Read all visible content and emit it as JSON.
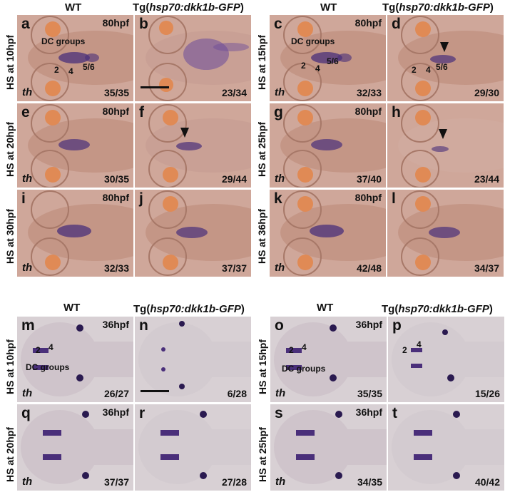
{
  "colors": {
    "top_panel_bg": "#cfa79a",
    "bottom_panel_bg": "#d8d0d4",
    "stain": "#4a2f7a",
    "eye": "#e08a55"
  },
  "top_block": {
    "headers": {
      "wt": "WT",
      "tg_prefix": "Tg(",
      "tg_gene": "hsp70:dkk1b-GFP",
      "tg_suffix": ")"
    },
    "rows": [
      {
        "label": "HS at 10hpf",
        "panels": [
          {
            "letter": "a",
            "stage": "80hpf",
            "gene": "th",
            "ratio": "35/35",
            "annotations": [
              "DC groups",
              "2",
              "4",
              "5/6"
            ]
          },
          {
            "letter": "b",
            "stage": "",
            "gene": "",
            "ratio": "23/34",
            "scale_bar": true
          }
        ]
      },
      {
        "label": "HS at 15hpf",
        "panels": [
          {
            "letter": "c",
            "stage": "80hpf",
            "gene": "th",
            "ratio": "32/33",
            "annotations": [
              "DC groups",
              "2",
              "4",
              "5/6"
            ]
          },
          {
            "letter": "d",
            "stage": "",
            "gene": "",
            "ratio": "29/30",
            "annotations": [
              "2",
              "4",
              "5/6"
            ],
            "arrowhead": true
          }
        ]
      },
      {
        "label": "HS at 20hpf",
        "panels": [
          {
            "letter": "e",
            "stage": "80hpf",
            "gene": "th",
            "ratio": "30/35"
          },
          {
            "letter": "f",
            "stage": "",
            "gene": "",
            "ratio": "29/44",
            "arrowhead": true
          }
        ]
      },
      {
        "label": "HS at 25hpf",
        "panels": [
          {
            "letter": "g",
            "stage": "80hpf",
            "gene": "th",
            "ratio": "37/40"
          },
          {
            "letter": "h",
            "stage": "",
            "gene": "",
            "ratio": "23/44",
            "arrowhead": true
          }
        ]
      },
      {
        "label": "HS at 30hpf",
        "panels": [
          {
            "letter": "i",
            "stage": "80hpf",
            "gene": "th",
            "ratio": "32/33"
          },
          {
            "letter": "j",
            "stage": "",
            "gene": "",
            "ratio": "37/37"
          }
        ]
      },
      {
        "label": "HS at 36hpf",
        "panels": [
          {
            "letter": "k",
            "stage": "80hpf",
            "gene": "th",
            "ratio": "42/48"
          },
          {
            "letter": "l",
            "stage": "",
            "gene": "",
            "ratio": "34/37"
          }
        ]
      }
    ]
  },
  "bottom_block": {
    "headers": {
      "wt": "WT",
      "tg_prefix": "Tg(",
      "tg_gene": "hsp70:dkk1b-GFP",
      "tg_suffix": ")"
    },
    "rows": [
      {
        "label": "HS at 10hpf",
        "panels": [
          {
            "letter": "m",
            "stage": "36hpf",
            "gene": "th",
            "ratio": "26/27",
            "annotations": [
              "2",
              "4",
              "DC groups"
            ]
          },
          {
            "letter": "n",
            "stage": "",
            "gene": "",
            "ratio": "6/28",
            "scale_bar": true
          }
        ]
      },
      {
        "label": "HS at 15hpf",
        "panels": [
          {
            "letter": "o",
            "stage": "36hpf",
            "gene": "th",
            "ratio": "35/35",
            "annotations": [
              "2",
              "4",
              "DC groups"
            ]
          },
          {
            "letter": "p",
            "stage": "",
            "gene": "",
            "ratio": "15/26",
            "annotations": [
              "2",
              "4"
            ]
          }
        ]
      },
      {
        "label": "HS at 20hpf",
        "panels": [
          {
            "letter": "q",
            "stage": "36hpf",
            "gene": "th",
            "ratio": "37/37"
          },
          {
            "letter": "r",
            "stage": "",
            "gene": "",
            "ratio": "27/28"
          }
        ]
      },
      {
        "label": "HS at 25hpf",
        "panels": [
          {
            "letter": "s",
            "stage": "36hpf",
            "gene": "th",
            "ratio": "34/35"
          },
          {
            "letter": "t",
            "stage": "",
            "gene": "",
            "ratio": "40/42"
          }
        ]
      }
    ]
  }
}
